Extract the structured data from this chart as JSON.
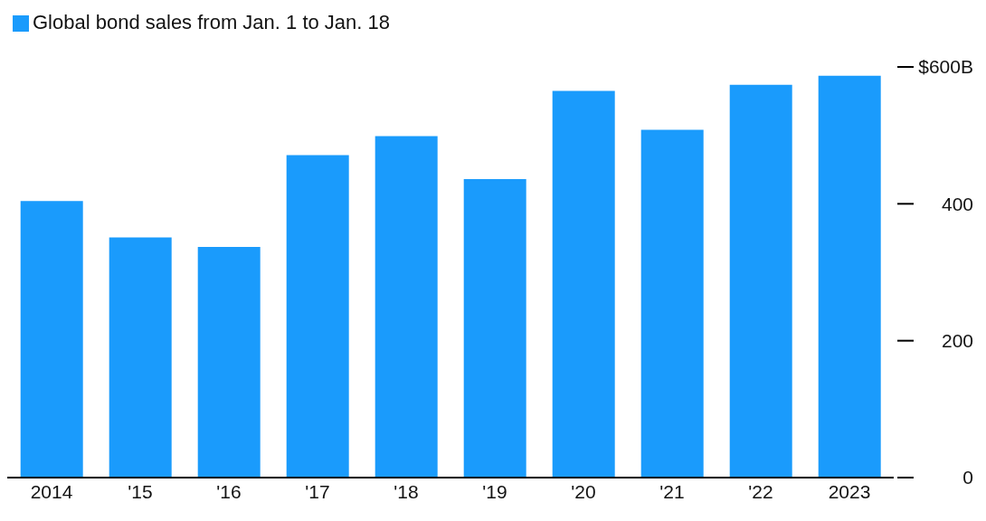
{
  "chart_data": {
    "type": "bar",
    "categories": [
      "2014",
      "'15",
      "'16",
      "'17",
      "'18",
      "'19",
      "'20",
      "'21",
      "'22",
      "2023"
    ],
    "series": [
      {
        "name": "Global bond sales from Jan. 1 to Jan. 18",
        "color": "#1a9bfc",
        "values": [
          404,
          351,
          337,
          471,
          499,
          436,
          565,
          508,
          574,
          587
        ]
      }
    ],
    "ylim": [
      0,
      600
    ],
    "yticks": [
      0,
      200,
      400,
      {
        "value": 600,
        "label": "$600B"
      }
    ],
    "grid": false,
    "legend": "top left"
  }
}
